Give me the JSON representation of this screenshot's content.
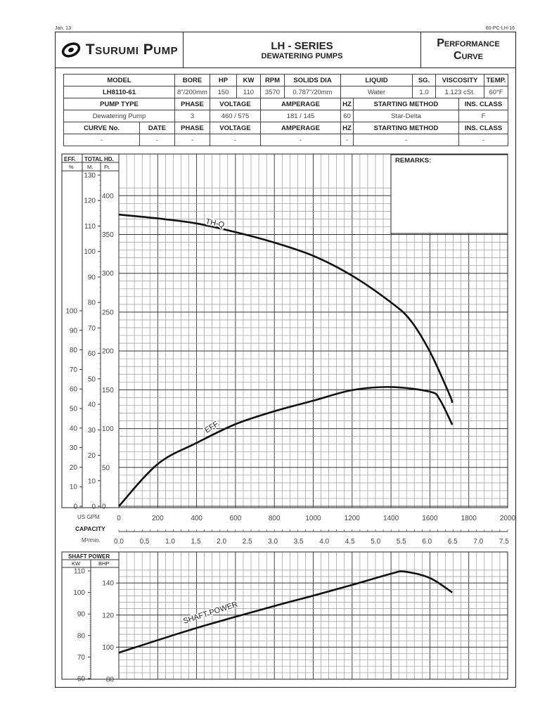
{
  "header": {
    "date_code": "Jan. 13",
    "doc_code": "60-PC-LH-16",
    "brand": "Tsurumi Pump",
    "series_title": "LH - SERIES",
    "series_subtitle": "DEWATERING PUMPS",
    "doc_type_line1": "Performance",
    "doc_type_line2": "Curve"
  },
  "spec_table": {
    "row1_headers": [
      "MODEL",
      "BORE",
      "HP",
      "KW",
      "RPM",
      "SOLIDS DIA",
      "LIQUID",
      "SG.",
      "VISCOSITY",
      "TEMP."
    ],
    "row1_values": [
      "LH8110-61",
      "8\"/200mm",
      "150",
      "110",
      "3570",
      "0.787\"/20mm",
      "Water",
      "1.0",
      "1.123 cSt.",
      "60°F"
    ],
    "row2_headers": [
      "PUMP TYPE",
      "PHASE",
      "VOLTAGE",
      "AMPERAGE",
      "HZ",
      "STARTING METHOD",
      "INS. CLASS"
    ],
    "row2_values": [
      "Dewatering Pump",
      "3",
      "460 / 575",
      "181 / 145",
      "60",
      "Star-Delta",
      "F"
    ],
    "row3_headers": [
      "CURVE No.",
      "DATE",
      "PHASE",
      "VOLTAGE",
      "AMPERAGE",
      "HZ",
      "STARTING METHOD",
      "INS. CLASS"
    ],
    "row3_values": [
      "-",
      "-",
      "-",
      "-",
      "-",
      "-",
      "-",
      "-"
    ]
  },
  "remarks_label": "REMARKS:",
  "axis_headers": {
    "eff": "EFF.",
    "eff_unit": "%",
    "total_hd": "TOTAL HD.",
    "m_unit": "M.",
    "ft_unit": "Ft.",
    "us_gpm": "US GPM",
    "capacity": "CAPACITY",
    "m3min": "M³/min.",
    "shaft_power": "SHAFT POWER",
    "kw": "KW",
    "bhp": "BHP"
  },
  "chart_data": [
    {
      "type": "line",
      "title": "Performance Curve - LH8110-61",
      "xlabel": "CAPACITY (US GPM)",
      "x_secondary_label": "CAPACITY (M³/min.)",
      "ylabel": "TOTAL HD. (M.) / EFF. (%)",
      "xlim": [
        0,
        2000
      ],
      "x_ticks": [
        0,
        200,
        400,
        600,
        800,
        1000,
        1200,
        1400,
        1600,
        1800,
        2000
      ],
      "x_secondary_ticks": [
        "0.0",
        "0.5",
        "1.0",
        "1.5",
        "2.0",
        "2.5",
        "3.0",
        "3.5",
        "4.0",
        "4.5",
        "5.0",
        "5.5",
        "6.0",
        "6.5",
        "7.0",
        "7.5"
      ],
      "y_head_m_ticks": [
        0,
        10,
        20,
        30,
        40,
        50,
        60,
        70,
        80,
        90,
        100,
        110,
        120,
        130
      ],
      "y_head_ft_ticks": [
        0,
        50,
        100,
        150,
        200,
        250,
        300,
        350,
        400
      ],
      "y_eff_ticks": [
        0,
        10,
        20,
        30,
        40,
        50,
        60,
        70,
        80,
        90,
        100
      ],
      "ylim_m": [
        0,
        130
      ],
      "ylim_eff": [
        0,
        100
      ],
      "grid": true,
      "series": [
        {
          "name": "TH-Q",
          "axis": "head_m",
          "x": [
            0,
            200,
            400,
            600,
            800,
            1000,
            1200,
            1400,
            1500,
            1600,
            1700,
            1715
          ],
          "values": [
            114.5,
            113,
            111,
            107.6,
            103.5,
            98.3,
            90.5,
            80,
            73,
            60.7,
            44,
            40.6
          ]
        },
        {
          "name": "EFF.",
          "axis": "eff_pct",
          "x": [
            0,
            200,
            400,
            600,
            800,
            1000,
            1200,
            1400,
            1600,
            1650,
            1715
          ],
          "values": [
            0,
            21.6,
            32.4,
            42,
            48.6,
            54,
            59.4,
            61,
            58.6,
            54.7,
            41.7
          ]
        }
      ]
    },
    {
      "type": "line",
      "title": "SHAFT POWER",
      "xlabel": "CAPACITY (US GPM)",
      "ylabel": "SHAFT POWER (KW / BHP)",
      "xlim": [
        0,
        2000
      ],
      "y_kw_ticks": [
        60,
        70,
        80,
        90,
        100,
        110
      ],
      "y_bhp_ticks": [
        80,
        100,
        120,
        140
      ],
      "ylim_kw": [
        60,
        110
      ],
      "grid": true,
      "series": [
        {
          "name": "SHAFT POWER",
          "axis": "kw",
          "x": [
            0,
            400,
            800,
            1000,
            1200,
            1400,
            1470,
            1600,
            1715
          ],
          "values": [
            72,
            83.5,
            93.7,
            98.5,
            103.5,
            108.7,
            109.7,
            106.7,
            100
          ]
        }
      ]
    }
  ],
  "curve_labels": {
    "thq": "TH-Q",
    "eff": "EFF.",
    "shaft": "SHAFT POWER"
  },
  "colors": {
    "line": "#111111",
    "grid_minor": "#9a9a9a",
    "grid_major": "#333333"
  }
}
